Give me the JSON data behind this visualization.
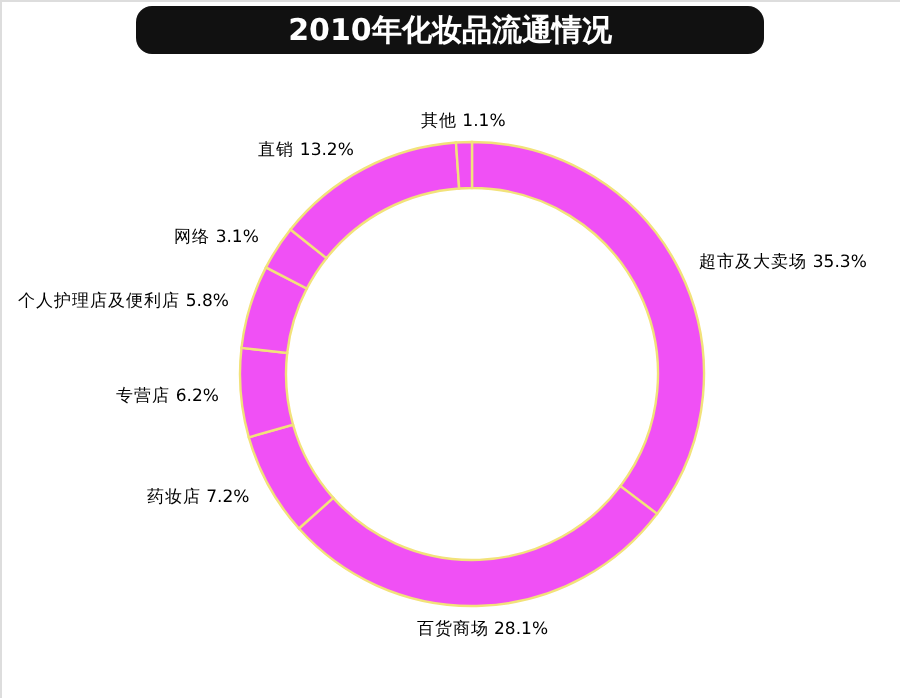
{
  "chart_data": {
    "type": "donut",
    "title": "2010年化妆品流通情况",
    "categories": [
      "超市及大卖场",
      "百货商场",
      "药妆店",
      "专营店",
      "个人护理店及便利店",
      "网络",
      "直销",
      "其他"
    ],
    "values": [
      35.3,
      28.1,
      7.2,
      6.2,
      5.8,
      3.1,
      13.2,
      1.1
    ],
    "value_labels": [
      "35.3%",
      "28.1%",
      "7.2%",
      "6.2%",
      "5.8%",
      "3.1%",
      "13.2%",
      "1.1%"
    ],
    "colors": [
      "#f050f5",
      "#f050f5",
      "#f050f5",
      "#f050f5",
      "#f050f5",
      "#f050f5",
      "#f050f5",
      "#f050f5"
    ]
  }
}
